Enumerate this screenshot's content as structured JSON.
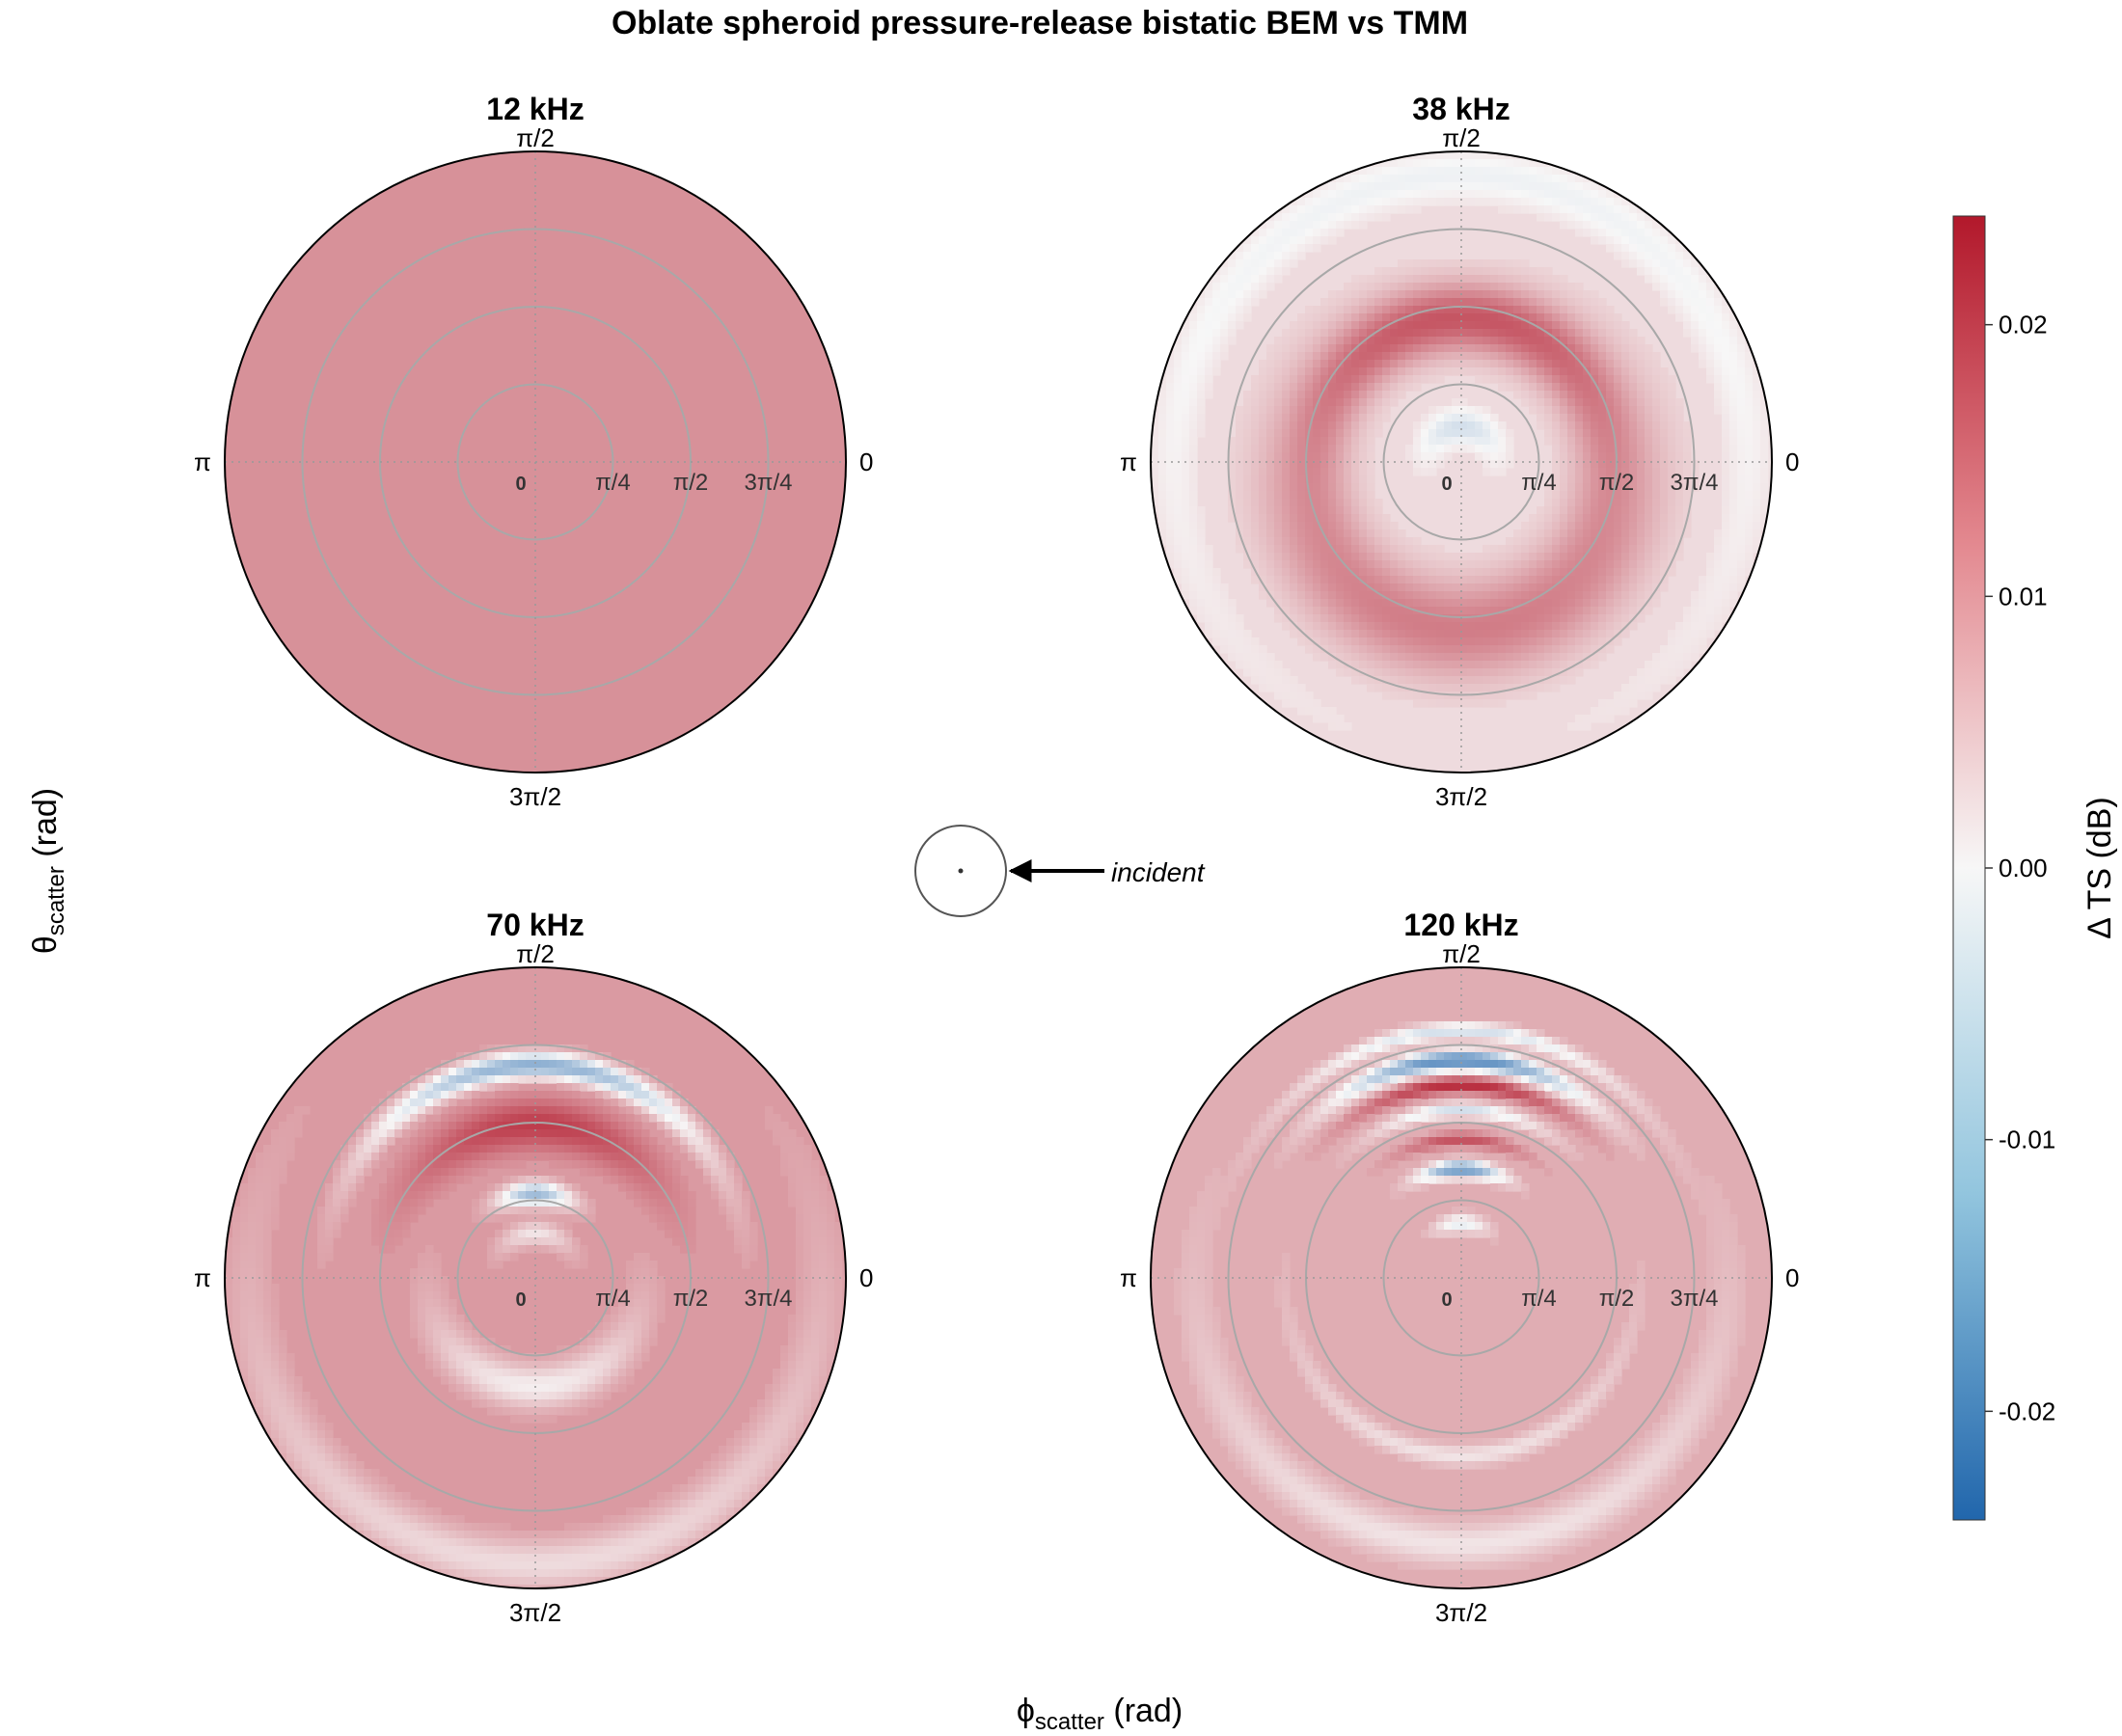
{
  "title": "Oblate spheroid pressure-release bistatic BEM vs TMM",
  "xlabel": {
    "symbol": "ϕ",
    "sub": "scatter",
    "unit": " (rad)"
  },
  "ylabel": {
    "symbol": "θ",
    "sub": "scatter",
    "unit": " (rad)"
  },
  "incident_label": "incident",
  "angle_labels": {
    "top": "π/2",
    "left": "π",
    "right": "0",
    "bottom": "3π/2"
  },
  "radial_labels": [
    "0",
    "π/4",
    "π/2",
    "3π/4"
  ],
  "colorbar": {
    "title": "Δ TS (dB)",
    "range": [
      -0.024,
      0.024
    ],
    "ticks": [
      0.02,
      0.01,
      0.0,
      -0.01,
      -0.02
    ],
    "tick_labels": [
      "0.02",
      "0.01",
      "0.00",
      "-0.01",
      "-0.02"
    ],
    "low_color": "#2166ac",
    "mid_color": "#f7f7f7",
    "high_color": "#b2182b"
  },
  "chart_data": {
    "type": "heatmap",
    "projection": "polar",
    "axis_theta": "ϕ scatter (rad)",
    "axis_r": "θ scatter (rad)",
    "r_range": [
      0,
      3.1416
    ],
    "r_gridlines": [
      0,
      0.7854,
      1.5708,
      2.3562
    ],
    "value_units": "dB",
    "value_range": [
      -0.024,
      0.024
    ],
    "panels": [
      {
        "label": "12 kHz",
        "base": 0.011,
        "features": []
      },
      {
        "label": "38 kHz",
        "base": 0.003,
        "features": [
          {
            "dir": "up",
            "r": 1.45,
            "w": 0.35,
            "amp": 0.014,
            "spread": 1.6
          },
          {
            "dir": "down",
            "r": 1.7,
            "w": 0.5,
            "amp": 0.01,
            "spread": 1.8
          },
          {
            "dir": "up",
            "r": 2.9,
            "w": 0.25,
            "amp": -0.004,
            "spread": 2.2
          },
          {
            "dir": "up",
            "r": 0.35,
            "w": 0.18,
            "amp": -0.007,
            "spread": 1.4
          }
        ]
      },
      {
        "label": "70 kHz",
        "base": 0.01,
        "features": [
          {
            "dir": "up",
            "r": 2.15,
            "w": 0.13,
            "amp": -0.022,
            "spread": 0.85
          },
          {
            "dir": "up",
            "r": 1.55,
            "w": 0.25,
            "amp": 0.01,
            "spread": 0.9
          },
          {
            "dir": "up",
            "r": 0.85,
            "w": 0.12,
            "amp": -0.02,
            "spread": 0.45
          },
          {
            "dir": "up",
            "r": 0.45,
            "w": 0.12,
            "amp": -0.008,
            "spread": 0.9
          },
          {
            "dir": "down",
            "r": 1.1,
            "w": 0.22,
            "amp": -0.009,
            "spread": 1.2
          },
          {
            "dir": "down",
            "r": 2.9,
            "w": 0.25,
            "amp": -0.007,
            "spread": 1.5
          }
        ]
      },
      {
        "label": "120 kHz",
        "base": 0.008,
        "features": [
          {
            "dir": "up",
            "r": 2.5,
            "w": 0.08,
            "amp": -0.012,
            "spread": 0.7
          },
          {
            "dir": "up",
            "r": 2.2,
            "w": 0.1,
            "amp": -0.026,
            "spread": 0.55
          },
          {
            "dir": "up",
            "r": 1.95,
            "w": 0.08,
            "amp": 0.014,
            "spread": 0.55
          },
          {
            "dir": "up",
            "r": 1.7,
            "w": 0.07,
            "amp": -0.012,
            "spread": 0.5
          },
          {
            "dir": "up",
            "r": 1.4,
            "w": 0.07,
            "amp": 0.01,
            "spread": 0.45
          },
          {
            "dir": "up",
            "r": 1.1,
            "w": 0.08,
            "amp": -0.024,
            "spread": 0.38
          },
          {
            "dir": "up",
            "r": 0.55,
            "w": 0.09,
            "amp": -0.01,
            "spread": 0.5
          },
          {
            "dir": "down",
            "r": 1.8,
            "w": 0.1,
            "amp": -0.006,
            "spread": 1.2
          },
          {
            "dir": "down",
            "r": 2.7,
            "w": 0.2,
            "amp": -0.006,
            "spread": 1.4
          }
        ]
      }
    ]
  }
}
